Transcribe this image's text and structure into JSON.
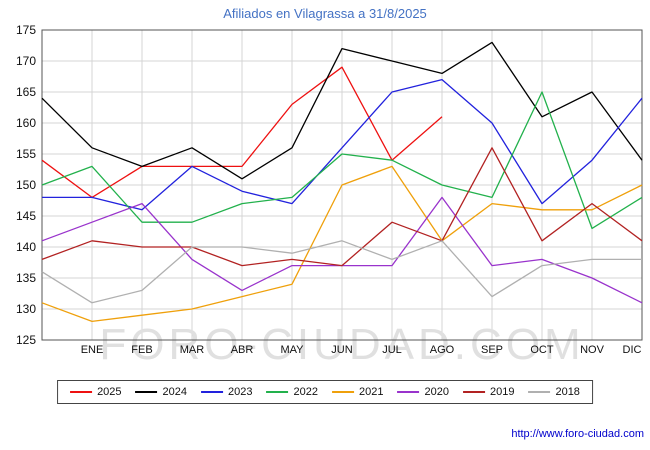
{
  "watermark": "FORO-CIUDAD.COM",
  "footer": {
    "url_label": "http://www.foro-ciudad.com"
  },
  "colors": {
    "title": "#4472c4",
    "grid": "#d4d4d4",
    "plot_border": "#555555",
    "watermark": "#e0e0e0",
    "axis_text": "#111111"
  },
  "chart_data": {
    "type": "line",
    "title": "Afiliados en Vilagrassa a 31/8/2025",
    "categories": [
      "ENE",
      "FEB",
      "MAR",
      "ABR",
      "MAY",
      "JUN",
      "JUL",
      "AGO",
      "SEP",
      "OCT",
      "NOV",
      "DIC"
    ],
    "ylim": [
      125,
      175
    ],
    "ytick_step": 5,
    "grid": true,
    "legend_position": "bottom",
    "note": "prev_dec is the value plotted at the left plot edge (December of previous year) before ENE; 2025 series ends at AGO per title date 31/8/2025",
    "series": [
      {
        "name": "2025",
        "color": "#ee1111",
        "prev_dec": 154,
        "values": [
          148,
          153,
          153,
          153,
          163,
          169,
          154,
          161
        ]
      },
      {
        "name": "2024",
        "color": "#000000",
        "prev_dec": 164,
        "values": [
          156,
          153,
          156,
          151,
          156,
          172,
          170,
          168,
          173,
          161,
          165,
          154
        ]
      },
      {
        "name": "2023",
        "color": "#2222dd",
        "prev_dec": 148,
        "values": [
          148,
          146,
          153,
          149,
          147,
          156,
          165,
          167,
          160,
          147,
          154,
          164
        ]
      },
      {
        "name": "2022",
        "color": "#22b14c",
        "prev_dec": 150,
        "values": [
          153,
          144,
          144,
          147,
          148,
          155,
          154,
          150,
          148,
          165,
          143,
          148
        ]
      },
      {
        "name": "2021",
        "color": "#efa00b",
        "prev_dec": 131,
        "values": [
          128,
          129,
          130,
          132,
          134,
          150,
          153,
          141,
          147,
          146,
          146,
          150
        ]
      },
      {
        "name": "2020",
        "color": "#9933cc",
        "prev_dec": 141,
        "values": [
          144,
          147,
          138,
          133,
          137,
          137,
          137,
          148,
          137,
          138,
          135,
          131
        ]
      },
      {
        "name": "2019",
        "color": "#b22222",
        "prev_dec": 138,
        "values": [
          141,
          140,
          140,
          137,
          138,
          137,
          144,
          141,
          156,
          141,
          147,
          141
        ]
      },
      {
        "name": "2018",
        "color": "#b0b0b0",
        "prev_dec": 136,
        "values": [
          131,
          133,
          140,
          140,
          139,
          141,
          138,
          141,
          132,
          137,
          138,
          138
        ]
      }
    ]
  }
}
